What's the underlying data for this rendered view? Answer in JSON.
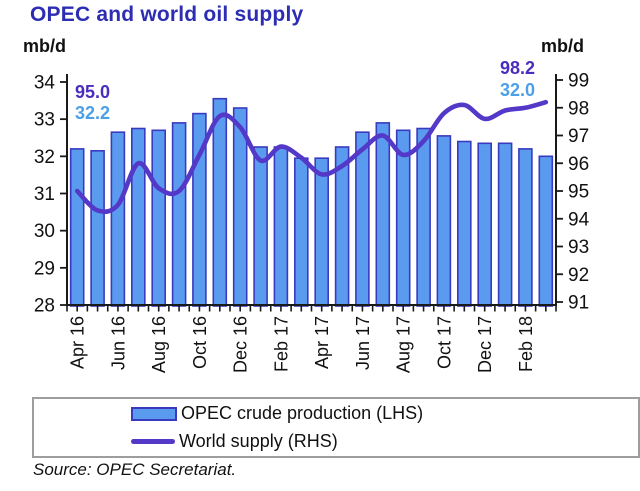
{
  "title": "OPEC and world oil supply",
  "axis_unit_left": "mb/d",
  "axis_unit_right": "mb/d",
  "annotations": {
    "first_world": "95.0",
    "first_opec": "32.2",
    "last_world": "98.2",
    "last_opec": "32.0"
  },
  "legend": {
    "bars_label": "OPEC crude production (LHS)",
    "line_label": "World supply (RHS)"
  },
  "source": "Source: OPEC Secretariat.",
  "colors": {
    "title": "#2d2db4",
    "bar_fill": "#5a9bf0",
    "bar_border": "#3a3abe",
    "line": "#5438c8",
    "annotation_world": "#4b2dbe",
    "annotation_opec": "#4da0e8",
    "axis": "#1a1a1a",
    "legend_border": "#9d9d9d"
  },
  "chart_data": {
    "type": "bar",
    "subtype": "bar+line combo, dual axis",
    "title": "OPEC and world oil supply",
    "categories": [
      "Apr 16",
      "May 16",
      "Jun 16",
      "Jul 16",
      "Aug 16",
      "Sep 16",
      "Oct 16",
      "Nov 16",
      "Dec 16",
      "Jan 17",
      "Feb 17",
      "Mar 17",
      "Apr 17",
      "May 17",
      "Jun 17",
      "Jul 17",
      "Aug 17",
      "Sep 17",
      "Oct 17",
      "Nov 17",
      "Dec 17",
      "Jan 18",
      "Feb 18",
      "Mar 18"
    ],
    "x_labels_shown_every": 2,
    "series": [
      {
        "name": "OPEC crude production (LHS)",
        "type": "bar",
        "axis": "left",
        "values": [
          32.2,
          32.15,
          32.65,
          32.75,
          32.7,
          32.9,
          33.15,
          33.55,
          33.3,
          32.25,
          32.25,
          31.95,
          31.95,
          32.25,
          32.65,
          32.9,
          32.7,
          32.75,
          32.55,
          32.4,
          32.35,
          32.35,
          32.2,
          32.0
        ]
      },
      {
        "name": "World supply (RHS)",
        "type": "line",
        "axis": "right",
        "values": [
          95.0,
          94.3,
          94.5,
          96.0,
          95.1,
          95.0,
          96.3,
          97.7,
          97.3,
          96.1,
          96.6,
          96.2,
          95.6,
          95.9,
          96.5,
          97.0,
          96.3,
          96.8,
          97.8,
          98.1,
          97.6,
          97.9,
          98.0,
          98.2
        ]
      }
    ],
    "left_axis": {
      "label": "mb/d",
      "min": 28,
      "max": 34,
      "tick_step": 1,
      "ticks": [
        34,
        33,
        32,
        31,
        30,
        29,
        28
      ]
    },
    "right_axis": {
      "label": "mb/d",
      "min": 91,
      "max": 99,
      "tick_step": 1,
      "ticks": [
        99,
        98,
        97,
        96,
        95,
        94,
        93,
        92,
        91
      ]
    },
    "grid": false,
    "legend_position": "bottom"
  }
}
